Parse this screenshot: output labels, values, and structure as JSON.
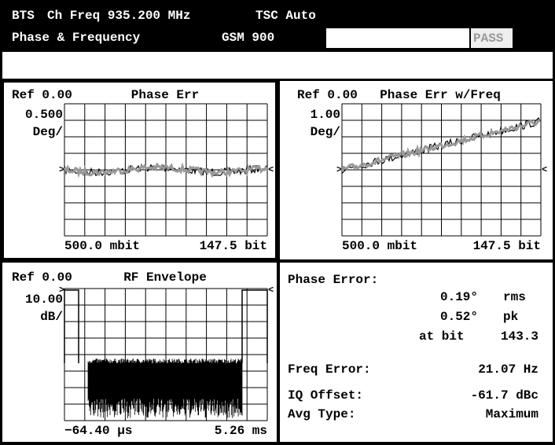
{
  "header": {
    "line1": [
      "BTS",
      "Ch Freq 935.200 MHz",
      "TSC Auto"
    ],
    "line2": [
      "Phase & Frequency",
      "GSM 900"
    ],
    "status": "PASS"
  },
  "panels": [
    {
      "ref": "Ref 0.00",
      "title": "Phase Err",
      "scale": "0.500",
      "unit": "Deg/",
      "x_start": "500.0 mbit",
      "x_end": "147.5 bit"
    },
    {
      "ref": "Ref 0.00",
      "title": "Phase Err w/Freq",
      "scale": "1.00",
      "unit": "Deg/",
      "x_start": "500.0 mbit",
      "x_end": "147.5 bit"
    },
    {
      "ref": "Ref 0.00",
      "title": "RF Envelope",
      "scale": "10.00",
      "unit": "dB/",
      "x_start": "−64.40 μs",
      "x_end": "5.26 ms"
    }
  ],
  "results": {
    "phase_error_label": "Phase Error:",
    "rms_value": "0.19°",
    "rms_label": "rms",
    "pk_value": "0.52°",
    "pk_label": "pk",
    "at_bit_label": "at bit",
    "at_bit_value": "143.3",
    "freq_error_label": "Freq Error:",
    "freq_error_value": "21.07 Hz",
    "iq_offset_label": "IQ Offset:",
    "iq_offset_value": "-61.7 dBc",
    "avg_type_label": "Avg Type:",
    "avg_type_value": "Maximum"
  }
}
